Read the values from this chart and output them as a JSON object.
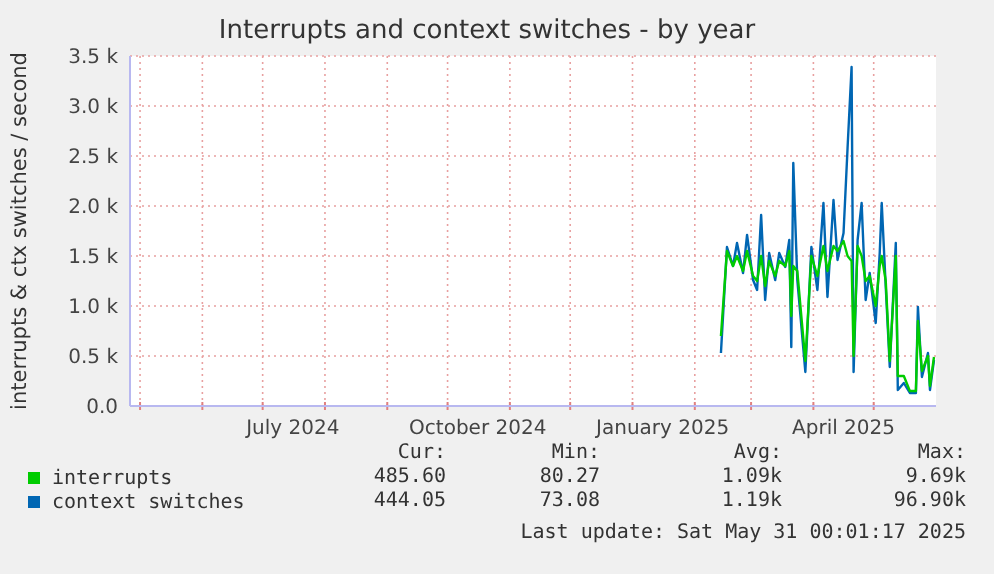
{
  "chart_data": {
    "type": "line",
    "title": "Interrupts and context switches - by year",
    "ylabel": "interrupts & ctx switches / second",
    "xlim": [
      "2024-04-26",
      "2025-06-01"
    ],
    "xticks": [
      {
        "value": "2024-05-01",
        "label": null
      },
      {
        "value": "2024-06-01",
        "label": null
      },
      {
        "value": "2024-07-01",
        "label": null
      },
      {
        "value": "2024-07-16",
        "label": "July 2024"
      },
      {
        "value": "2024-08-01",
        "label": null
      },
      {
        "value": "2024-09-01",
        "label": null
      },
      {
        "value": "2024-10-01",
        "label": null
      },
      {
        "value": "2024-10-16",
        "label": "October 2024"
      },
      {
        "value": "2024-11-01",
        "label": null
      },
      {
        "value": "2024-12-01",
        "label": null
      },
      {
        "value": "2025-01-01",
        "label": null
      },
      {
        "value": "2025-01-16",
        "label": "January 2025"
      },
      {
        "value": "2025-02-01",
        "label": null
      },
      {
        "value": "2025-03-01",
        "label": null
      },
      {
        "value": "2025-04-01",
        "label": null
      },
      {
        "value": "2025-04-16",
        "label": "April 2025"
      },
      {
        "value": "2025-05-01",
        "label": null
      }
    ],
    "ylim": [
      0,
      3500
    ],
    "yticks": [
      {
        "value": 0,
        "label": "0.0"
      },
      {
        "value": 500,
        "label": "0.5 k"
      },
      {
        "value": 1000,
        "label": "1.0 k"
      },
      {
        "value": 1500,
        "label": "1.5 k"
      },
      {
        "value": 2000,
        "label": "2.0 k"
      },
      {
        "value": 2500,
        "label": "2.5 k"
      },
      {
        "value": 3000,
        "label": "3.0 k"
      },
      {
        "value": 3500,
        "label": "3.5 k"
      }
    ],
    "grid": true,
    "legend": "bottom",
    "line_style": "solid",
    "marker": "none",
    "x": [
      "2025-02-14",
      "2025-02-17",
      "2025-02-20",
      "2025-02-22",
      "2025-02-25",
      "2025-02-27",
      "2025-03-02",
      "2025-03-04",
      "2025-03-06",
      "2025-03-08",
      "2025-03-10",
      "2025-03-13",
      "2025-03-15",
      "2025-03-18",
      "2025-03-20",
      "2025-03-21",
      "2025-03-22",
      "2025-03-24",
      "2025-03-28",
      "2025-03-31",
      "2025-04-03",
      "2025-04-06",
      "2025-04-08",
      "2025-04-11",
      "2025-04-13",
      "2025-04-16",
      "2025-04-18",
      "2025-04-20",
      "2025-04-21",
      "2025-04-23",
      "2025-04-25",
      "2025-04-27",
      "2025-04-29",
      "2025-05-02",
      "2025-05-04",
      "2025-05-05",
      "2025-05-07",
      "2025-05-09",
      "2025-05-12",
      "2025-05-13",
      "2025-05-16",
      "2025-05-19",
      "2025-05-22",
      "2025-05-23",
      "2025-05-25",
      "2025-05-28",
      "2025-05-29",
      "2025-05-31"
    ],
    "series": [
      {
        "name": "interrupts",
        "color": "#00cc00",
        "values": [
          700,
          1550,
          1400,
          1500,
          1350,
          1550,
          1300,
          1250,
          1500,
          1200,
          1450,
          1300,
          1450,
          1400,
          1550,
          900,
          1400,
          1350,
          450,
          1500,
          1300,
          1600,
          1350,
          1600,
          1550,
          1650,
          1500,
          1450,
          500,
          1600,
          1500,
          1250,
          1300,
          1000,
          1400,
          1500,
          1250,
          450,
          1500,
          300,
          300,
          150,
          150,
          850,
          350,
          500,
          200,
          490
        ]
      },
      {
        "name": "context switches",
        "color": "#0066b3",
        "values": [
          530,
          1590,
          1400,
          1630,
          1330,
          1710,
          1260,
          1160,
          1910,
          1060,
          1530,
          1260,
          1530,
          1390,
          1660,
          590,
          2430,
          1260,
          340,
          1590,
          1160,
          2030,
          1090,
          2060,
          1460,
          1730,
          2580,
          3390,
          340,
          1660,
          2030,
          1060,
          1330,
          830,
          1530,
          2030,
          1190,
          390,
          1630,
          160,
          230,
          130,
          130,
          990,
          290,
          530,
          160,
          460
        ]
      }
    ],
    "annotations": [
      "Cur:",
      "Min:",
      "Avg:",
      "Max:",
      "485.60",
      "80.27",
      "1.09k",
      "9.69k",
      "444.05",
      "73.08",
      "1.19k",
      "96.90k",
      "Last update: Sat May 31 00:01:17 2025"
    ]
  }
}
